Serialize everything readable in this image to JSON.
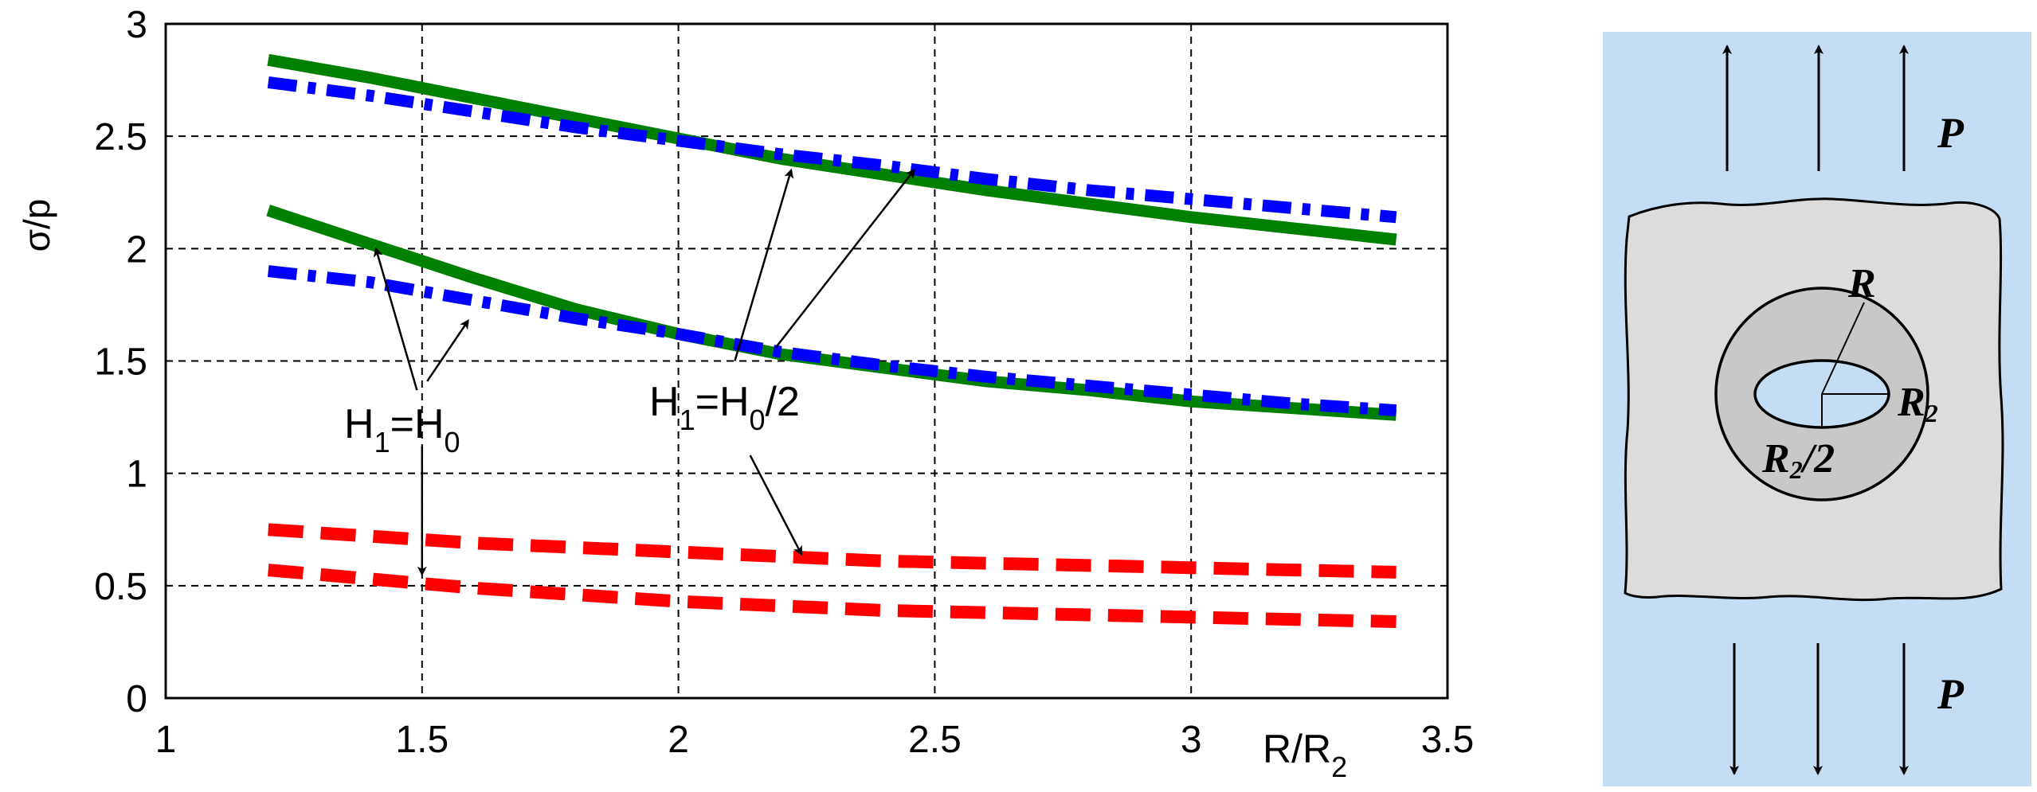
{
  "chart_data": {
    "type": "line",
    "xlabel": "R/R",
    "xlabel_sub": "2",
    "ylabel": "σ/p",
    "xlim": [
      1,
      3.5
    ],
    "ylim": [
      0,
      3
    ],
    "xticks": [
      1,
      1.5,
      2,
      2.5,
      3,
      3.5
    ],
    "xtick_labels": [
      "1",
      "1.5",
      "2",
      "2.5",
      "3",
      "3.5"
    ],
    "yticks": [
      0,
      0.5,
      1,
      1.5,
      2,
      2.5,
      3
    ],
    "ytick_labels": [
      "0",
      "0.5",
      "1",
      "1.5",
      "2",
      "2.5",
      "3"
    ],
    "grid": true,
    "annotations": [
      {
        "base": "H",
        "sub1": "1",
        "mid": "=H",
        "sub2": "0",
        "tail": ""
      },
      {
        "base": "H",
        "sub1": "1",
        "mid": "=H",
        "sub2": "0",
        "tail": "/2"
      }
    ],
    "series": [
      {
        "color": "#008000",
        "style": "solid",
        "x": [
          1.2,
          1.4,
          1.6,
          1.8,
          2.0,
          2.2,
          2.4,
          2.6,
          2.8,
          3.0,
          3.2,
          3.4
        ],
        "y": [
          2.84,
          2.76,
          2.67,
          2.58,
          2.49,
          2.4,
          2.33,
          2.26,
          2.2,
          2.14,
          2.09,
          2.04
        ]
      },
      {
        "color": "#0000ff",
        "style": "dashdot",
        "x": [
          1.2,
          1.4,
          1.6,
          1.8,
          2.0,
          2.2,
          2.4,
          2.6,
          2.8,
          3.0,
          3.2,
          3.4
        ],
        "y": [
          2.74,
          2.68,
          2.61,
          2.54,
          2.48,
          2.42,
          2.37,
          2.31,
          2.26,
          2.22,
          2.18,
          2.14
        ]
      },
      {
        "color": "#008000",
        "style": "solid",
        "x": [
          1.2,
          1.4,
          1.6,
          1.8,
          2.0,
          2.2,
          2.4,
          2.6,
          2.8,
          3.0,
          3.2,
          3.4
        ],
        "y": [
          2.17,
          2.02,
          1.87,
          1.73,
          1.62,
          1.53,
          1.47,
          1.41,
          1.37,
          1.32,
          1.29,
          1.26
        ]
      },
      {
        "color": "#0000ff",
        "style": "dashdot",
        "x": [
          1.2,
          1.4,
          1.6,
          1.8,
          2.0,
          2.2,
          2.4,
          2.6,
          2.8,
          3.0,
          3.2,
          3.4
        ],
        "y": [
          1.9,
          1.85,
          1.77,
          1.69,
          1.62,
          1.54,
          1.48,
          1.43,
          1.39,
          1.35,
          1.31,
          1.28
        ]
      },
      {
        "color": "#ff0000",
        "style": "dashed",
        "x": [
          1.2,
          1.4,
          1.6,
          1.8,
          2.0,
          2.2,
          2.4,
          2.6,
          2.8,
          3.0,
          3.2,
          3.4
        ],
        "y": [
          0.75,
          0.72,
          0.69,
          0.67,
          0.65,
          0.63,
          0.61,
          0.6,
          0.59,
          0.58,
          0.57,
          0.56
        ]
      },
      {
        "color": "#ff0000",
        "style": "dashed",
        "x": [
          1.2,
          1.4,
          1.6,
          1.8,
          2.0,
          2.2,
          2.4,
          2.6,
          2.8,
          3.0,
          3.2,
          3.4
        ],
        "y": [
          0.57,
          0.53,
          0.49,
          0.46,
          0.43,
          0.41,
          0.39,
          0.38,
          0.37,
          0.36,
          0.35,
          0.34
        ]
      }
    ],
    "arrows": [
      {
        "from": [
          1.49,
          1.37
        ],
        "to": [
          1.41,
          2.0
        ]
      },
      {
        "from": [
          1.51,
          1.41
        ],
        "to": [
          1.59,
          1.68
        ]
      },
      {
        "from": [
          1.5,
          1.12
        ],
        "to": [
          1.5,
          0.55
        ]
      },
      {
        "from": [
          2.11,
          1.5
        ],
        "to": [
          2.22,
          2.35
        ]
      },
      {
        "from": [
          2.19,
          1.56
        ],
        "to": [
          2.46,
          2.35
        ]
      },
      {
        "from": [
          2.14,
          1.08
        ],
        "to": [
          2.24,
          0.64
        ]
      }
    ]
  },
  "diagram": {
    "background_color": "#c5ddf3",
    "plate_color": "#dcdcdc",
    "ring_color": "#c8c8c8",
    "hole_color": "#c5ddf3",
    "load_top": "P",
    "load_bottom": "P",
    "label_outer_radius": "R",
    "label_inner_radius": "R",
    "label_inner_sub": "2",
    "label_half_radius": "R",
    "label_half_sub": "2",
    "label_half_tail": "/2"
  }
}
